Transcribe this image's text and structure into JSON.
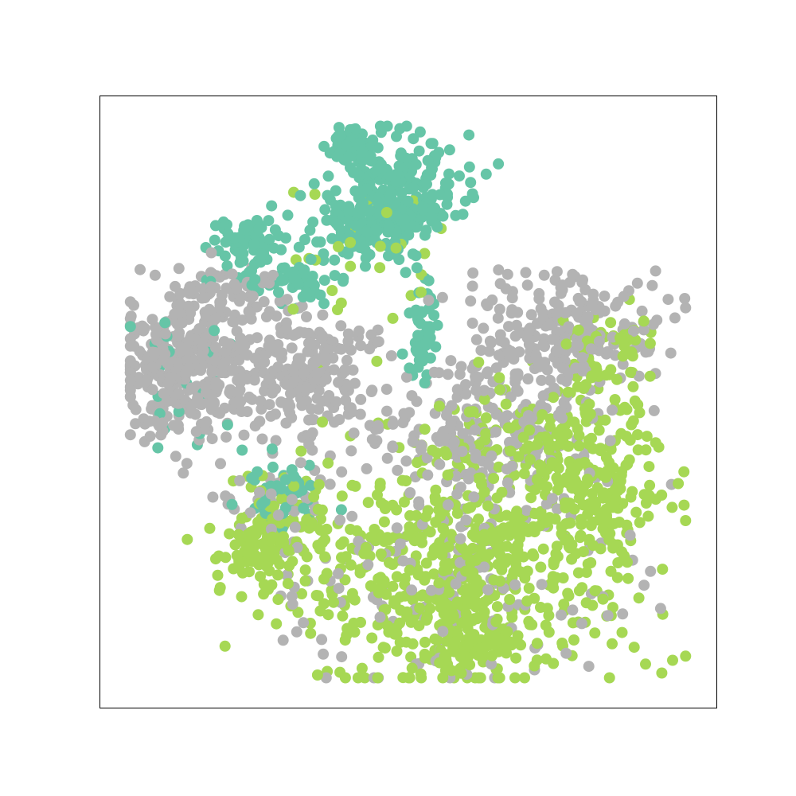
{
  "colors": {
    "teal": "#66c5a7",
    "gray": "#b3b3b3",
    "lime": "#a6d854",
    "frame": "#000000"
  },
  "chart_data": {
    "type": "scatter",
    "title": "",
    "xlabel": "",
    "ylabel": "",
    "xticks": [],
    "yticks": [],
    "grid": false,
    "legend": "none",
    "xlim": [
      0,
      100
    ],
    "ylim": [
      0,
      100
    ],
    "marker": "filled-circle",
    "series": [
      {
        "color_key": "teal",
        "clusters": [
          {
            "cx": 40.6,
            "cy": 91.5,
            "sx": 1.6,
            "sy": 1.5,
            "n": 80
          },
          {
            "cx": 48.5,
            "cy": 84.0,
            "sx": 5.5,
            "sy": 4.8,
            "n": 230
          },
          {
            "cx": 42.5,
            "cy": 78.5,
            "sx": 4.5,
            "sy": 2.8,
            "n": 120
          },
          {
            "cx": 24.5,
            "cy": 76.0,
            "sx": 3.0,
            "sy": 2.2,
            "n": 60
          },
          {
            "cx": 31.0,
            "cy": 70.0,
            "sx": 5.0,
            "sy": 2.0,
            "n": 60
          },
          {
            "cx": 52.5,
            "cy": 61.0,
            "sx": 1.5,
            "sy": 5.0,
            "n": 50
          },
          {
            "cx": 30.0,
            "cy": 35.0,
            "sx": 3.5,
            "sy": 3.0,
            "n": 50
          },
          {
            "cx": 13.0,
            "cy": 55.0,
            "sx": 5.0,
            "sy": 6.0,
            "n": 25
          }
        ]
      },
      {
        "color_key": "gray",
        "clusters": [
          {
            "cx": 13.5,
            "cy": 55.5,
            "sx": 5.5,
            "sy": 6.0,
            "n": 340
          },
          {
            "cx": 33.5,
            "cy": 54.5,
            "sx": 6.5,
            "sy": 5.0,
            "n": 230
          },
          {
            "cx": 21.0,
            "cy": 67.0,
            "sx": 4.0,
            "sy": 2.5,
            "n": 60
          },
          {
            "cx": 75.5,
            "cy": 61.5,
            "sx": 7.0,
            "sy": 5.0,
            "n": 240
          },
          {
            "cx": 62.0,
            "cy": 45.0,
            "sx": 10.0,
            "sy": 6.0,
            "n": 220
          },
          {
            "cx": 58.0,
            "cy": 20.0,
            "sx": 15.0,
            "sy": 9.0,
            "n": 140
          },
          {
            "cx": 30.0,
            "cy": 33.0,
            "sx": 6.0,
            "sy": 3.0,
            "n": 40
          }
        ]
      },
      {
        "color_key": "lime",
        "clusters": [
          {
            "cx": 58.0,
            "cy": 23.0,
            "sx": 14.0,
            "sy": 9.0,
            "n": 580
          },
          {
            "cx": 80.0,
            "cy": 37.0,
            "sx": 5.5,
            "sy": 6.0,
            "n": 200
          },
          {
            "cx": 27.0,
            "cy": 28.0,
            "sx": 5.0,
            "sy": 4.5,
            "n": 130
          },
          {
            "cx": 60.5,
            "cy": 10.0,
            "sx": 4.5,
            "sy": 2.5,
            "n": 70
          },
          {
            "cx": 66.0,
            "cy": 44.0,
            "sx": 7.0,
            "sy": 5.0,
            "n": 90
          },
          {
            "cx": 82.0,
            "cy": 56.0,
            "sx": 4.5,
            "sy": 4.5,
            "n": 60
          },
          {
            "cx": 45.0,
            "cy": 72.0,
            "sx": 8.0,
            "sy": 6.0,
            "n": 35
          }
        ]
      }
    ]
  }
}
